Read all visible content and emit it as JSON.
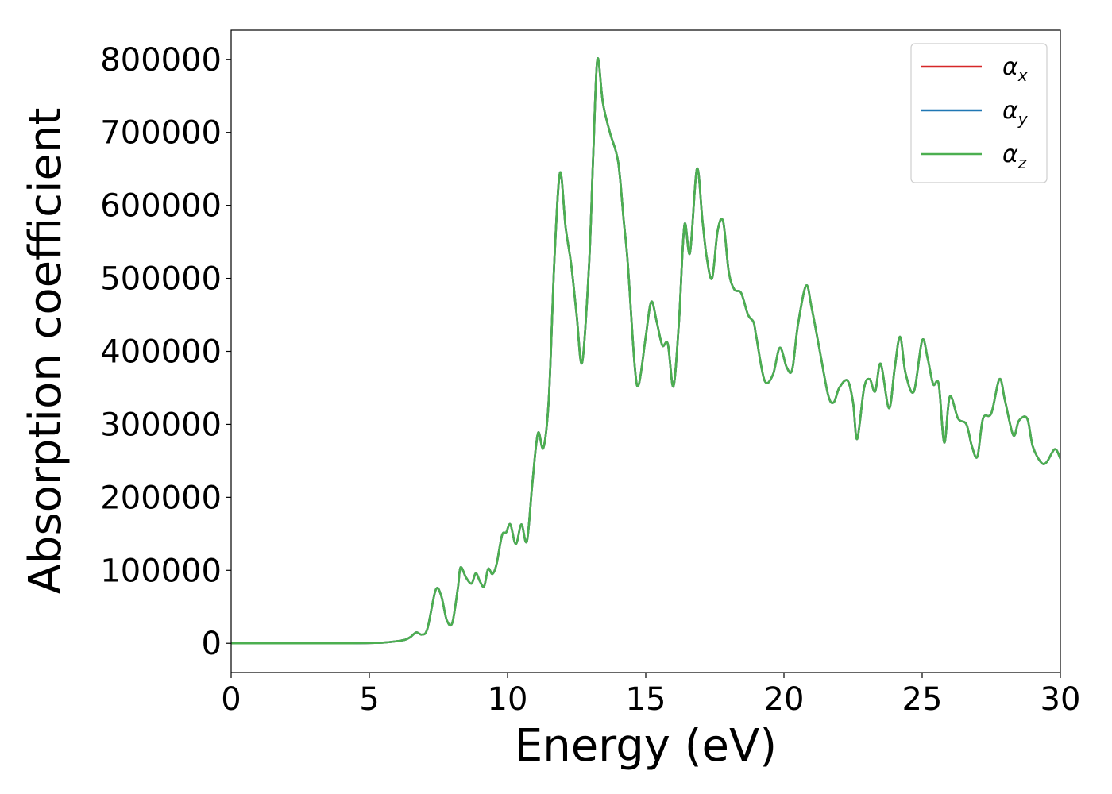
{
  "chart_data": {
    "type": "line",
    "title": "",
    "xlabel": "Energy (eV)",
    "ylabel": "Absorption coefficient",
    "xlim": [
      0,
      30
    ],
    "ylim": [
      -40000,
      840000
    ],
    "xticks": [
      0,
      5,
      10,
      15,
      20,
      25,
      30
    ],
    "xtick_labels": [
      "0",
      "5",
      "10",
      "15",
      "20",
      "25",
      "30"
    ],
    "yticks": [
      0,
      100000,
      200000,
      300000,
      400000,
      500000,
      600000,
      700000,
      800000
    ],
    "ytick_labels": [
      "0",
      "100000",
      "200000",
      "300000",
      "400000",
      "500000",
      "600000",
      "700000",
      "800000"
    ],
    "grid": false,
    "legend_position": "top-right",
    "legend": [
      {
        "symbol": "α",
        "subscript": "x",
        "color": "#d62728"
      },
      {
        "symbol": "α",
        "subscript": "y",
        "color": "#1f77b4"
      },
      {
        "symbol": "α",
        "subscript": "z",
        "color": "#4caf50"
      }
    ],
    "series_points": [
      [
        0,
        0
      ],
      [
        2,
        0
      ],
      [
        4,
        0
      ],
      [
        5,
        500
      ],
      [
        5.5,
        1000
      ],
      [
        6,
        3000
      ],
      [
        6.3,
        5000
      ],
      [
        6.5,
        9000
      ],
      [
        6.7,
        15000
      ],
      [
        6.9,
        12000
      ],
      [
        7.1,
        20000
      ],
      [
        7.4,
        73000
      ],
      [
        7.6,
        65000
      ],
      [
        7.8,
        32000
      ],
      [
        8.0,
        28000
      ],
      [
        8.2,
        75000
      ],
      [
        8.3,
        104000
      ],
      [
        8.5,
        90000
      ],
      [
        8.7,
        82000
      ],
      [
        8.85,
        96000
      ],
      [
        9.0,
        85000
      ],
      [
        9.15,
        78000
      ],
      [
        9.3,
        102000
      ],
      [
        9.45,
        95000
      ],
      [
        9.6,
        108000
      ],
      [
        9.8,
        148000
      ],
      [
        9.95,
        152000
      ],
      [
        10.1,
        163000
      ],
      [
        10.3,
        136000
      ],
      [
        10.5,
        163000
      ],
      [
        10.7,
        140000
      ],
      [
        10.9,
        220000
      ],
      [
        11.1,
        288000
      ],
      [
        11.3,
        268000
      ],
      [
        11.5,
        340000
      ],
      [
        11.7,
        530000
      ],
      [
        11.9,
        645000
      ],
      [
        12.1,
        570000
      ],
      [
        12.3,
        520000
      ],
      [
        12.5,
        450000
      ],
      [
        12.7,
        385000
      ],
      [
        12.95,
        520000
      ],
      [
        13.1,
        670000
      ],
      [
        13.25,
        800000
      ],
      [
        13.45,
        740000
      ],
      [
        13.7,
        700000
      ],
      [
        14.0,
        660000
      ],
      [
        14.2,
        580000
      ],
      [
        14.35,
        520000
      ],
      [
        14.6,
        380000
      ],
      [
        14.75,
        355000
      ],
      [
        15.0,
        420000
      ],
      [
        15.2,
        468000
      ],
      [
        15.4,
        440000
      ],
      [
        15.6,
        408000
      ],
      [
        15.8,
        410000
      ],
      [
        16.0,
        352000
      ],
      [
        16.2,
        440000
      ],
      [
        16.4,
        573000
      ],
      [
        16.6,
        535000
      ],
      [
        16.85,
        650000
      ],
      [
        17.05,
        580000
      ],
      [
        17.2,
        530000
      ],
      [
        17.4,
        500000
      ],
      [
        17.6,
        565000
      ],
      [
        17.8,
        578000
      ],
      [
        18.0,
        510000
      ],
      [
        18.2,
        485000
      ],
      [
        18.45,
        480000
      ],
      [
        18.7,
        450000
      ],
      [
        18.9,
        440000
      ],
      [
        19.0,
        420000
      ],
      [
        19.3,
        360000
      ],
      [
        19.6,
        368000
      ],
      [
        19.85,
        405000
      ],
      [
        20.1,
        378000
      ],
      [
        20.3,
        375000
      ],
      [
        20.5,
        435000
      ],
      [
        20.8,
        490000
      ],
      [
        21.0,
        460000
      ],
      [
        21.3,
        400000
      ],
      [
        21.6,
        340000
      ],
      [
        21.8,
        330000
      ],
      [
        22.0,
        350000
      ],
      [
        22.3,
        360000
      ],
      [
        22.5,
        330000
      ],
      [
        22.65,
        280000
      ],
      [
        22.9,
        350000
      ],
      [
        23.1,
        362000
      ],
      [
        23.3,
        345000
      ],
      [
        23.5,
        383000
      ],
      [
        23.8,
        322000
      ],
      [
        24.0,
        375000
      ],
      [
        24.2,
        420000
      ],
      [
        24.4,
        370000
      ],
      [
        24.7,
        345000
      ],
      [
        25.0,
        415000
      ],
      [
        25.2,
        390000
      ],
      [
        25.4,
        355000
      ],
      [
        25.6,
        355000
      ],
      [
        25.8,
        275000
      ],
      [
        26.0,
        338000
      ],
      [
        26.3,
        308000
      ],
      [
        26.6,
        300000
      ],
      [
        26.8,
        270000
      ],
      [
        27.0,
        256000
      ],
      [
        27.2,
        308000
      ],
      [
        27.5,
        315000
      ],
      [
        27.8,
        362000
      ],
      [
        28.0,
        332000
      ],
      [
        28.3,
        285000
      ],
      [
        28.5,
        305000
      ],
      [
        28.8,
        308000
      ],
      [
        29.0,
        270000
      ],
      [
        29.3,
        248000
      ],
      [
        29.5,
        248000
      ],
      [
        29.8,
        266000
      ],
      [
        30.0,
        253000
      ]
    ]
  }
}
